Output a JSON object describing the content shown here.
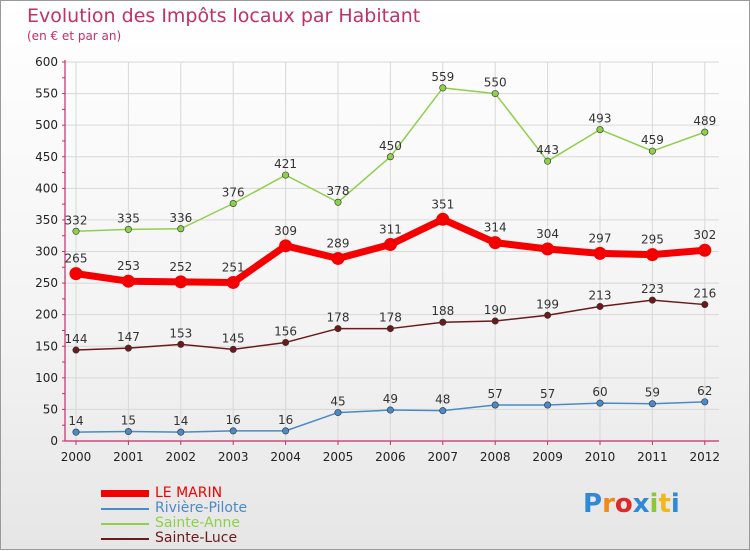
{
  "header": {
    "title": "Evolution des Impôts locaux par Habitant",
    "subtitle": "(en € et par an)"
  },
  "colors": {
    "title": "#c0306a",
    "axis": "#c0306a",
    "grid": "#d8d8d8"
  },
  "chart_data": {
    "type": "line",
    "x": [
      "2000",
      "2001",
      "2002",
      "2003",
      "2004",
      "2005",
      "2006",
      "2007",
      "2008",
      "2009",
      "2010",
      "2011",
      "2012"
    ],
    "ylim": [
      0,
      600
    ],
    "yticks": [
      0,
      50,
      100,
      150,
      200,
      250,
      300,
      350,
      400,
      450,
      500,
      550,
      600
    ],
    "grid": true,
    "legend_position": "bottom-left",
    "series": [
      {
        "name": "LE MARIN",
        "color": "#f50000",
        "values": [
          265,
          253,
          252,
          251,
          309,
          289,
          311,
          351,
          314,
          304,
          297,
          295,
          302
        ]
      },
      {
        "name": "Rivière-Pilote",
        "color": "#4a8ac8",
        "values": [
          14,
          15,
          14,
          16,
          16,
          45,
          49,
          48,
          57,
          57,
          60,
          59,
          62
        ]
      },
      {
        "name": "Sainte-Anne",
        "color": "#8fd04a",
        "values": [
          332,
          335,
          336,
          376,
          421,
          378,
          450,
          559,
          550,
          443,
          493,
          459,
          489
        ]
      },
      {
        "name": "Sainte-Luce",
        "color": "#6b1a1a",
        "values": [
          144,
          147,
          153,
          145,
          156,
          178,
          178,
          188,
          190,
          199,
          213,
          223,
          216
        ]
      }
    ]
  },
  "logo": {
    "letters": [
      "P",
      "r",
      "o",
      "x",
      "i",
      "t",
      "i"
    ],
    "colors": [
      "#2e8ad8",
      "#f08a1a",
      "#e02828",
      "#2e8ad8",
      "#8ac83a",
      "#f0b81a",
      "#2e8ad8"
    ]
  }
}
